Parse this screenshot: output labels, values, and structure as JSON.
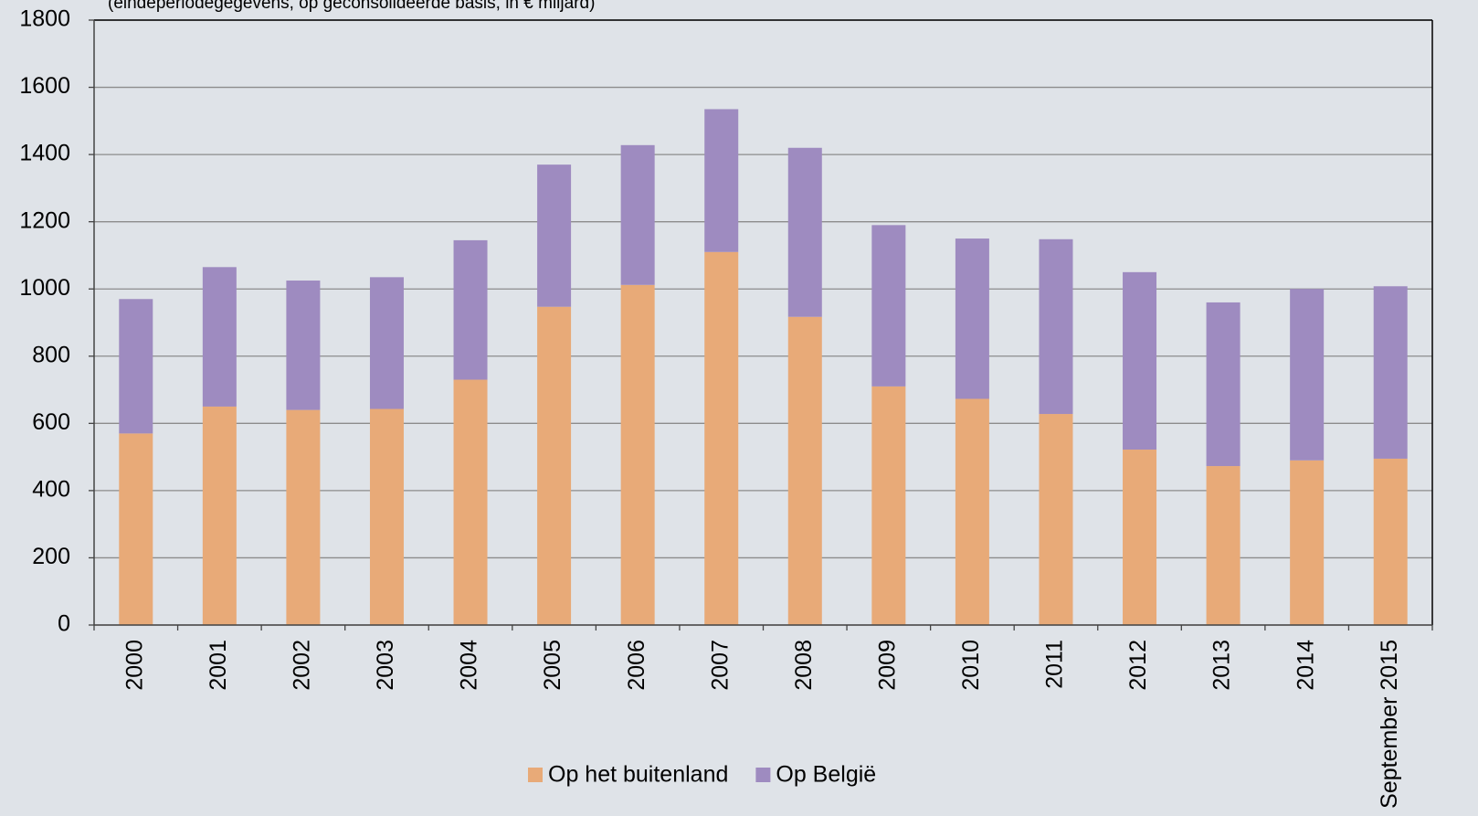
{
  "chart_data": {
    "type": "stacked_bar",
    "subtitle": "(eindeperiodegegevens, op geconsolideerde basis, in € miljard)",
    "categories": [
      "2000",
      "2001",
      "2002",
      "2003",
      "2004",
      "2005",
      "2006",
      "2007",
      "2008",
      "2009",
      "2010",
      "2011",
      "2012",
      "2013",
      "2014",
      "September 2015"
    ],
    "series": [
      {
        "name": "Op het buitenland",
        "color": "#e8aa78",
        "values": [
          570,
          650,
          640,
          643,
          730,
          947,
          1012,
          1110,
          917,
          710,
          673,
          628,
          522,
          473,
          490,
          495
        ]
      },
      {
        "name": "Op België",
        "color": "#9e8bc0",
        "values": [
          400,
          415,
          385,
          392,
          415,
          423,
          416,
          425,
          503,
          480,
          477,
          520,
          528,
          487,
          510,
          513
        ]
      }
    ],
    "ylim": [
      0,
      1800
    ],
    "yticks": [
      0,
      200,
      400,
      600,
      800,
      1000,
      1200,
      1400,
      1600,
      1800
    ],
    "grid": true,
    "legend": "bottom"
  }
}
